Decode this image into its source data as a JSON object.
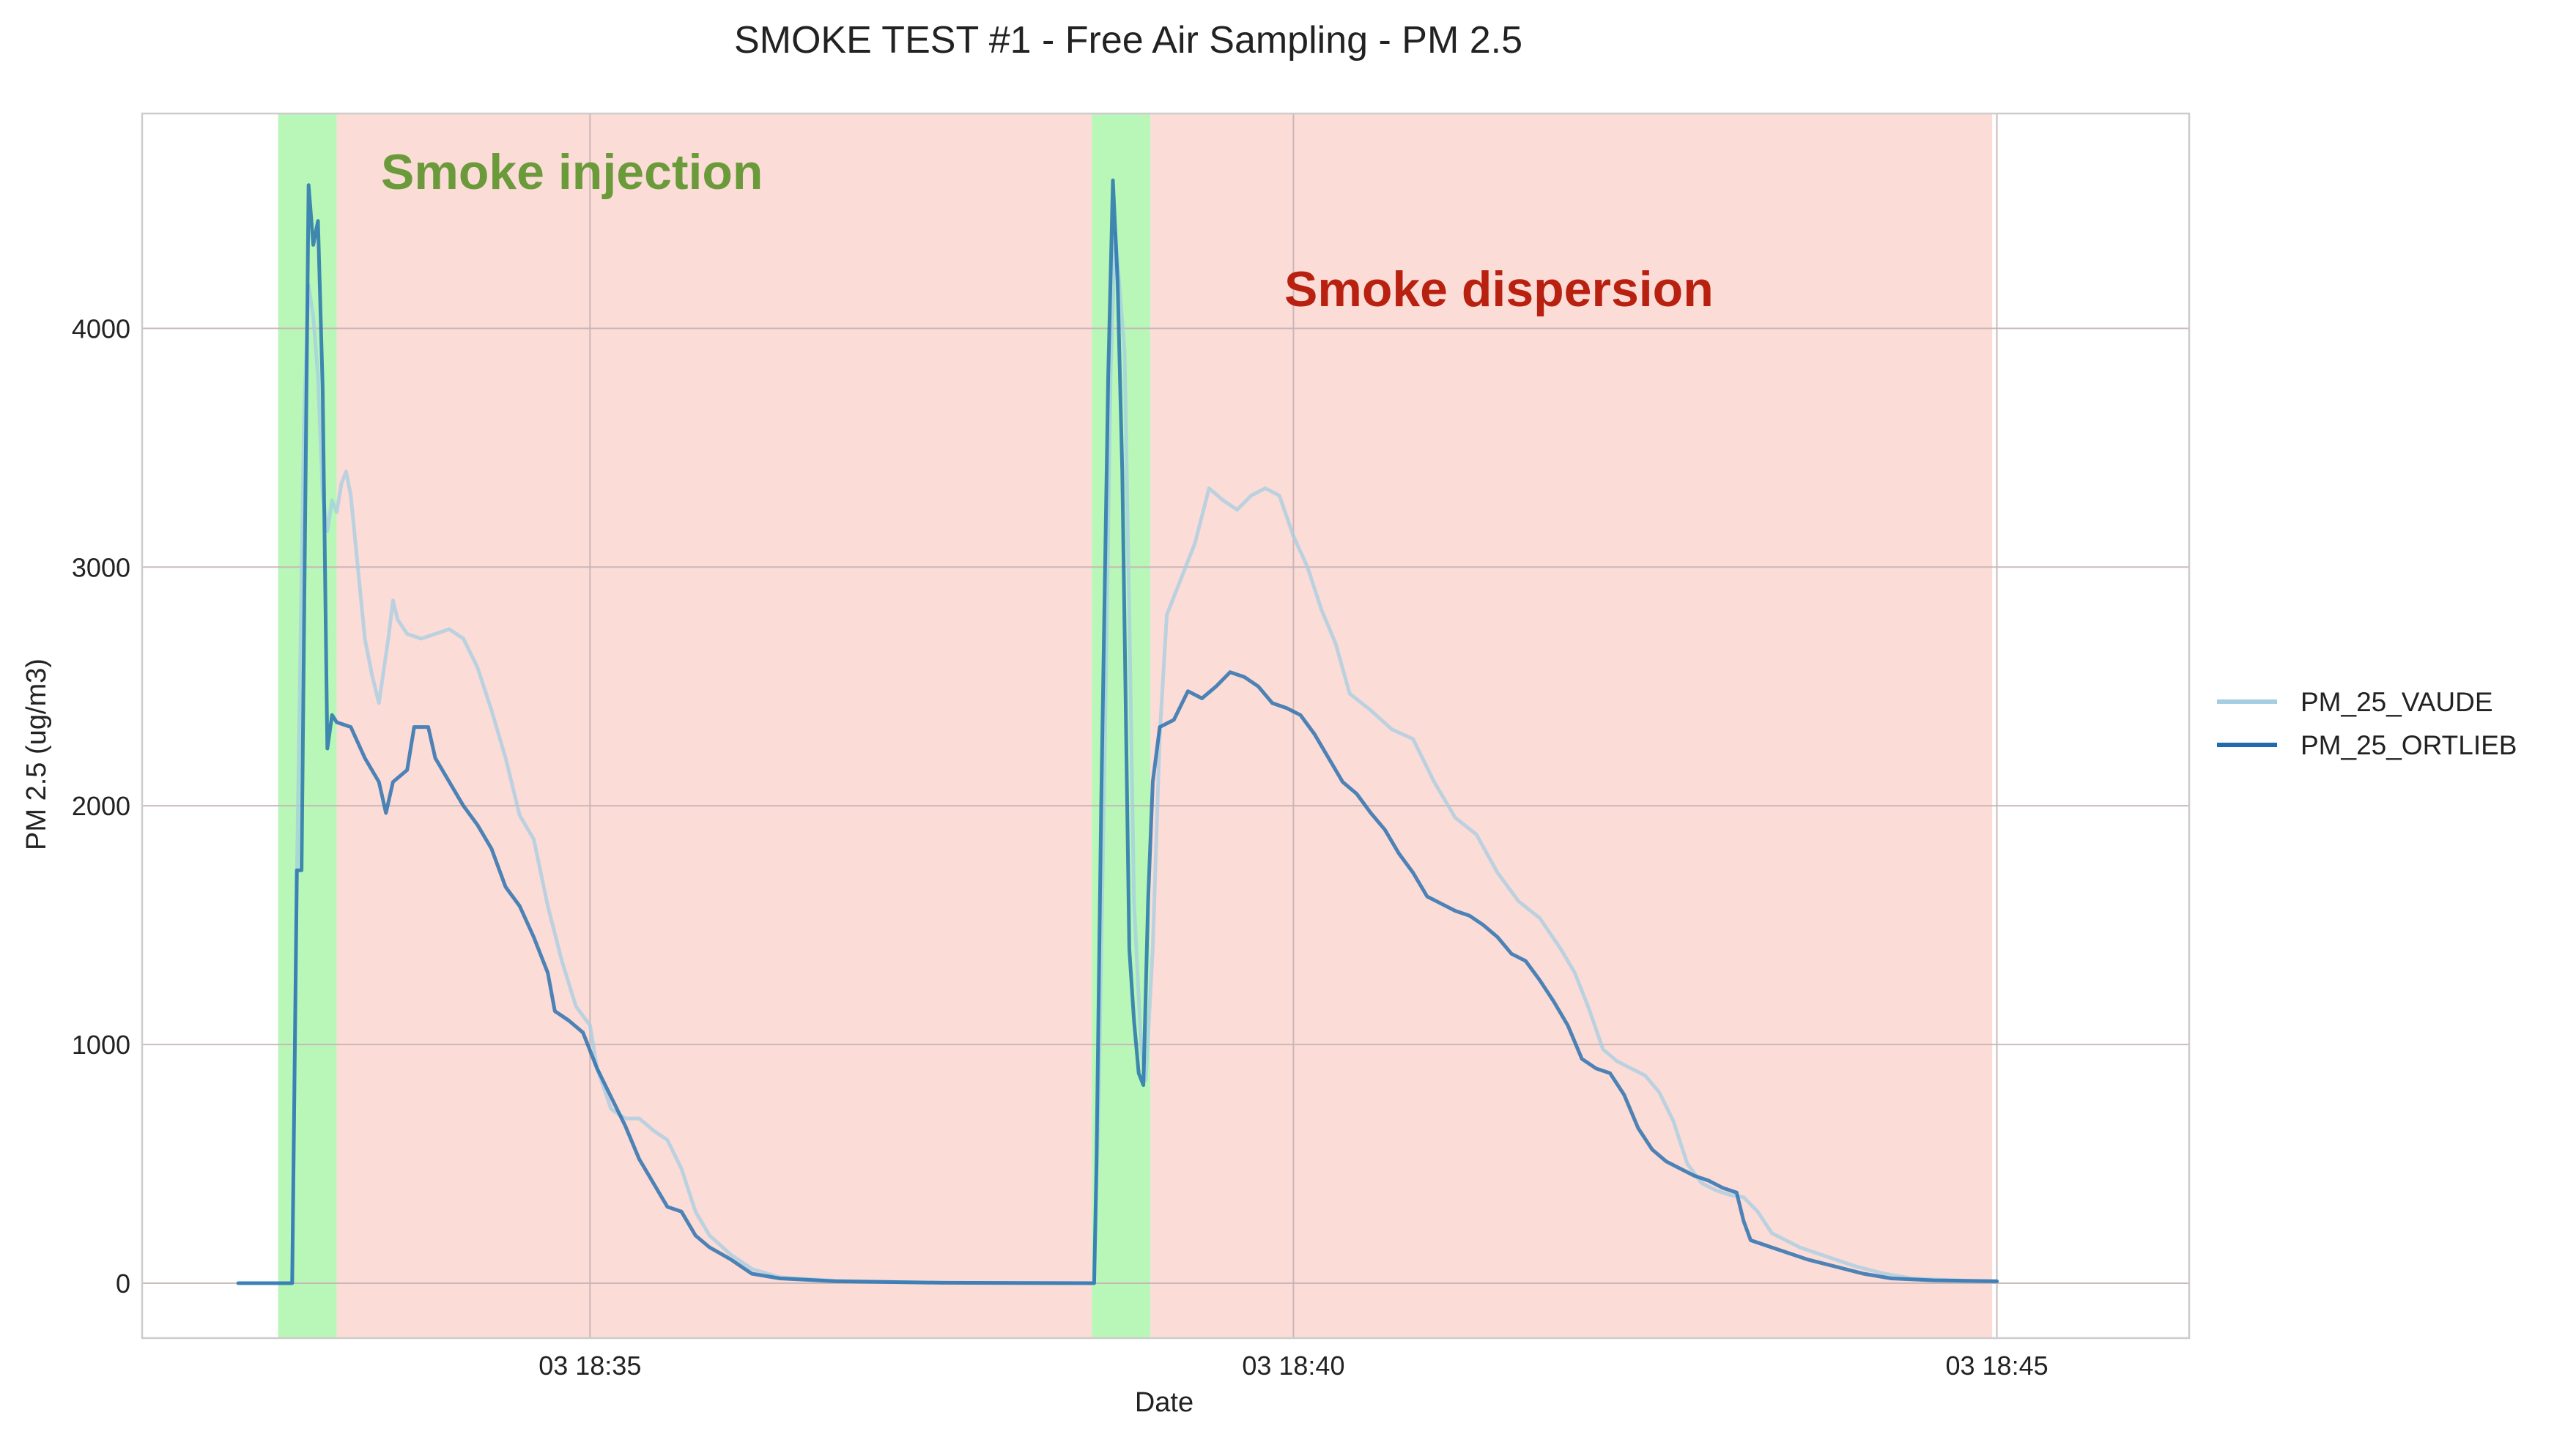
{
  "chart_data": {
    "type": "line",
    "title": "SMOKE TEST #1 - Free Air Sampling - PM 2.5",
    "xlabel": "Date",
    "ylabel": "PM 2.5 (ug/m3)",
    "x_unit": "time (HH:MM:SS)",
    "xlim": [
      "18:31:49",
      "18:46:22"
    ],
    "ylim": [
      -230,
      4900
    ],
    "x_ticks": [
      {
        "t": "18:35:00",
        "label": "03 18:35"
      },
      {
        "t": "18:40:00",
        "label": "03 18:40"
      },
      {
        "t": "18:45:00",
        "label": "03 18:45"
      }
    ],
    "y_ticks": [
      {
        "v": 0,
        "label": "0"
      },
      {
        "v": 1000,
        "label": "1000"
      },
      {
        "v": 2000,
        "label": "2000"
      },
      {
        "v": 3000,
        "label": "3000"
      },
      {
        "v": 4000,
        "label": "4000"
      }
    ],
    "grid": true,
    "legend_position": "right",
    "annotations": [
      {
        "text": "Smoke injection",
        "color": "#6a9a3a"
      },
      {
        "text": "Smoke dispersion",
        "color": "#b82010"
      }
    ],
    "shaded_regions": [
      {
        "phase": "injection",
        "start": "18:32:47",
        "end": "18:33:12",
        "color": "#b8f7b8"
      },
      {
        "phase": "dispersion",
        "start": "18:33:12",
        "end": "18:38:34",
        "color": "#fcdcd7"
      },
      {
        "phase": "injection",
        "start": "18:38:34",
        "end": "18:38:59",
        "color": "#b8f7b8"
      },
      {
        "phase": "dispersion",
        "start": "18:38:59",
        "end": "18:44:58",
        "color": "#fcdcd7"
      }
    ],
    "series": [
      {
        "name": "PM_25_VAUDE",
        "color": "#a6cee3",
        "data": [
          [
            "18:32:30",
            0
          ],
          [
            "18:32:53",
            0
          ],
          [
            "18:32:55",
            1700
          ],
          [
            "18:32:58",
            3600
          ],
          [
            "18:33:00",
            4180
          ],
          [
            "18:33:02",
            4050
          ],
          [
            "18:33:04",
            3800
          ],
          [
            "18:33:06",
            3300
          ],
          [
            "18:33:08",
            3150
          ],
          [
            "18:33:10",
            3280
          ],
          [
            "18:33:12",
            3230
          ],
          [
            "18:33:14",
            3350
          ],
          [
            "18:33:16",
            3400
          ],
          [
            "18:33:18",
            3300
          ],
          [
            "18:33:21",
            3000
          ],
          [
            "18:33:24",
            2700
          ],
          [
            "18:33:27",
            2550
          ],
          [
            "18:33:30",
            2430
          ],
          [
            "18:33:34",
            2700
          ],
          [
            "18:33:36",
            2860
          ],
          [
            "18:33:38",
            2780
          ],
          [
            "18:33:42",
            2720
          ],
          [
            "18:33:48",
            2700
          ],
          [
            "18:33:54",
            2720
          ],
          [
            "18:34:00",
            2740
          ],
          [
            "18:34:06",
            2700
          ],
          [
            "18:34:12",
            2580
          ],
          [
            "18:34:18",
            2400
          ],
          [
            "18:34:24",
            2200
          ],
          [
            "18:34:30",
            1960
          ],
          [
            "18:34:36",
            1860
          ],
          [
            "18:34:42",
            1580
          ],
          [
            "18:34:48",
            1350
          ],
          [
            "18:34:54",
            1160
          ],
          [
            "18:35:00",
            1080
          ],
          [
            "18:35:03",
            900
          ],
          [
            "18:35:09",
            730
          ],
          [
            "18:35:15",
            690
          ],
          [
            "18:35:21",
            690
          ],
          [
            "18:35:27",
            640
          ],
          [
            "18:35:33",
            600
          ],
          [
            "18:35:39",
            480
          ],
          [
            "18:35:45",
            300
          ],
          [
            "18:35:51",
            200
          ],
          [
            "18:36:00",
            120
          ],
          [
            "18:36:09",
            60
          ],
          [
            "18:36:21",
            25
          ],
          [
            "18:36:45",
            10
          ],
          [
            "18:37:30",
            2
          ],
          [
            "18:38:35",
            0
          ],
          [
            "18:38:37",
            800
          ],
          [
            "18:38:40",
            2500
          ],
          [
            "18:38:42",
            3800
          ],
          [
            "18:38:44",
            4400
          ],
          [
            "18:38:46",
            4150
          ],
          [
            "18:38:48",
            3900
          ],
          [
            "18:38:50",
            2800
          ],
          [
            "18:38:52",
            1600
          ],
          [
            "18:38:55",
            1000
          ],
          [
            "18:38:57",
            850
          ],
          [
            "18:39:00",
            1400
          ],
          [
            "18:39:03",
            2300
          ],
          [
            "18:39:06",
            2800
          ],
          [
            "18:39:12",
            2950
          ],
          [
            "18:39:18",
            3100
          ],
          [
            "18:39:24",
            3330
          ],
          [
            "18:39:30",
            3280
          ],
          [
            "18:39:36",
            3240
          ],
          [
            "18:39:42",
            3300
          ],
          [
            "18:39:48",
            3330
          ],
          [
            "18:39:54",
            3300
          ],
          [
            "18:40:00",
            3130
          ],
          [
            "18:40:06",
            3000
          ],
          [
            "18:40:12",
            2820
          ],
          [
            "18:40:18",
            2680
          ],
          [
            "18:40:24",
            2470
          ],
          [
            "18:40:33",
            2400
          ],
          [
            "18:40:42",
            2320
          ],
          [
            "18:40:51",
            2280
          ],
          [
            "18:41:00",
            2100
          ],
          [
            "18:41:09",
            1950
          ],
          [
            "18:41:18",
            1880
          ],
          [
            "18:41:27",
            1720
          ],
          [
            "18:41:36",
            1600
          ],
          [
            "18:41:45",
            1530
          ],
          [
            "18:41:54",
            1400
          ],
          [
            "18:42:00",
            1300
          ],
          [
            "18:42:06",
            1150
          ],
          [
            "18:42:12",
            980
          ],
          [
            "18:42:18",
            930
          ],
          [
            "18:42:24",
            900
          ],
          [
            "18:42:30",
            870
          ],
          [
            "18:42:36",
            800
          ],
          [
            "18:42:42",
            680
          ],
          [
            "18:42:48",
            500
          ],
          [
            "18:42:54",
            420
          ],
          [
            "18:43:00",
            390
          ],
          [
            "18:43:06",
            370
          ],
          [
            "18:43:12",
            360
          ],
          [
            "18:43:18",
            300
          ],
          [
            "18:43:24",
            210
          ],
          [
            "18:43:36",
            150
          ],
          [
            "18:43:48",
            110
          ],
          [
            "18:44:00",
            70
          ],
          [
            "18:44:12",
            40
          ],
          [
            "18:44:24",
            20
          ],
          [
            "18:44:36",
            15
          ],
          [
            "18:44:48",
            10
          ],
          [
            "18:45:00",
            8
          ]
        ]
      },
      {
        "name": "PM_25_ORTLIEB",
        "color": "#1f6bad",
        "data": [
          [
            "18:32:30",
            0
          ],
          [
            "18:32:53",
            0
          ],
          [
            "18:32:55",
            1730
          ],
          [
            "18:32:57",
            1730
          ],
          [
            "18:33:00",
            4600
          ],
          [
            "18:33:02",
            4350
          ],
          [
            "18:33:04",
            4450
          ],
          [
            "18:33:06",
            3750
          ],
          [
            "18:33:08",
            2240
          ],
          [
            "18:33:10",
            2380
          ],
          [
            "18:33:12",
            2350
          ],
          [
            "18:33:18",
            2330
          ],
          [
            "18:33:24",
            2200
          ],
          [
            "18:33:30",
            2100
          ],
          [
            "18:33:33",
            1970
          ],
          [
            "18:33:36",
            2100
          ],
          [
            "18:33:42",
            2150
          ],
          [
            "18:33:45",
            2330
          ],
          [
            "18:33:51",
            2330
          ],
          [
            "18:33:54",
            2200
          ],
          [
            "18:34:00",
            2100
          ],
          [
            "18:34:06",
            2000
          ],
          [
            "18:34:12",
            1920
          ],
          [
            "18:34:18",
            1820
          ],
          [
            "18:34:24",
            1660
          ],
          [
            "18:34:30",
            1580
          ],
          [
            "18:34:36",
            1450
          ],
          [
            "18:34:42",
            1300
          ],
          [
            "18:34:45",
            1140
          ],
          [
            "18:34:51",
            1100
          ],
          [
            "18:34:57",
            1050
          ],
          [
            "18:35:03",
            900
          ],
          [
            "18:35:09",
            780
          ],
          [
            "18:35:15",
            660
          ],
          [
            "18:35:21",
            520
          ],
          [
            "18:35:27",
            420
          ],
          [
            "18:35:33",
            320
          ],
          [
            "18:35:39",
            300
          ],
          [
            "18:35:45",
            200
          ],
          [
            "18:35:51",
            150
          ],
          [
            "18:36:00",
            100
          ],
          [
            "18:36:09",
            40
          ],
          [
            "18:36:21",
            20
          ],
          [
            "18:36:45",
            8
          ],
          [
            "18:37:30",
            2
          ],
          [
            "18:38:35",
            0
          ],
          [
            "18:38:36",
            500
          ],
          [
            "18:38:38",
            2000
          ],
          [
            "18:38:41",
            3800
          ],
          [
            "18:38:43",
            4620
          ],
          [
            "18:38:45",
            4200
          ],
          [
            "18:38:47",
            3400
          ],
          [
            "18:38:50",
            1400
          ],
          [
            "18:38:52",
            1100
          ],
          [
            "18:38:54",
            880
          ],
          [
            "18:38:56",
            830
          ],
          [
            "18:38:58",
            1600
          ],
          [
            "18:39:00",
            2100
          ],
          [
            "18:39:03",
            2330
          ],
          [
            "18:39:09",
            2360
          ],
          [
            "18:39:15",
            2480
          ],
          [
            "18:39:21",
            2450
          ],
          [
            "18:39:27",
            2500
          ],
          [
            "18:39:33",
            2560
          ],
          [
            "18:39:39",
            2540
          ],
          [
            "18:39:45",
            2500
          ],
          [
            "18:39:51",
            2430
          ],
          [
            "18:39:57",
            2410
          ],
          [
            "18:40:03",
            2380
          ],
          [
            "18:40:09",
            2300
          ],
          [
            "18:40:15",
            2200
          ],
          [
            "18:40:21",
            2100
          ],
          [
            "18:40:27",
            2050
          ],
          [
            "18:40:33",
            1970
          ],
          [
            "18:40:39",
            1900
          ],
          [
            "18:40:45",
            1800
          ],
          [
            "18:40:51",
            1720
          ],
          [
            "18:40:57",
            1620
          ],
          [
            "18:41:03",
            1590
          ],
          [
            "18:41:09",
            1560
          ],
          [
            "18:41:15",
            1540
          ],
          [
            "18:41:21",
            1500
          ],
          [
            "18:41:27",
            1450
          ],
          [
            "18:41:33",
            1380
          ],
          [
            "18:41:39",
            1350
          ],
          [
            "18:41:45",
            1270
          ],
          [
            "18:41:51",
            1180
          ],
          [
            "18:41:57",
            1080
          ],
          [
            "18:42:03",
            940
          ],
          [
            "18:42:09",
            900
          ],
          [
            "18:42:15",
            880
          ],
          [
            "18:42:21",
            790
          ],
          [
            "18:42:27",
            650
          ],
          [
            "18:42:33",
            560
          ],
          [
            "18:42:39",
            510
          ],
          [
            "18:42:45",
            480
          ],
          [
            "18:42:51",
            450
          ],
          [
            "18:42:57",
            430
          ],
          [
            "18:43:03",
            400
          ],
          [
            "18:43:09",
            380
          ],
          [
            "18:43:12",
            260
          ],
          [
            "18:43:15",
            180
          ],
          [
            "18:43:27",
            140
          ],
          [
            "18:43:39",
            100
          ],
          [
            "18:43:51",
            70
          ],
          [
            "18:44:03",
            40
          ],
          [
            "18:44:15",
            20
          ],
          [
            "18:44:33",
            12
          ],
          [
            "18:45:00",
            8
          ]
        ]
      }
    ]
  }
}
